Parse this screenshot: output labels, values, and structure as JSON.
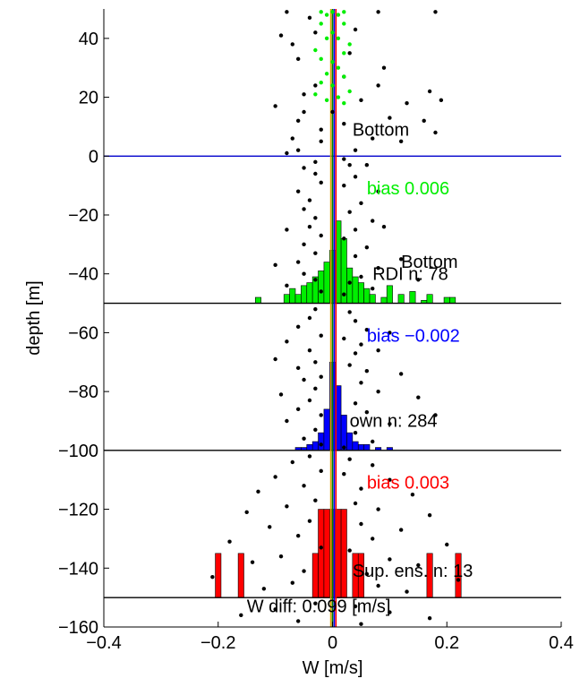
{
  "chart_data": {
    "type": "scatter",
    "title": "",
    "xlabel": "W [m/s]",
    "ylabel": "depth [m]",
    "xlim": [
      -0.4,
      0.4
    ],
    "ylim": [
      -160,
      50
    ],
    "x_ticks": [
      -0.4,
      -0.2,
      0,
      0.2,
      0.4
    ],
    "x_tick_labels": [
      "−0.4",
      "−0.2",
      "0",
      "0.2",
      "0.4"
    ],
    "y_ticks": [
      40,
      20,
      0,
      -20,
      -40,
      -60,
      -80,
      -100,
      -120,
      -140,
      -160
    ],
    "y_tick_labels": [
      "40",
      "20",
      "0",
      "−20",
      "−40",
      "−60",
      "−80",
      "−100",
      "−120",
      "−140",
      "−160"
    ],
    "grid": false,
    "reference_lines": [
      {
        "type": "horizontal",
        "y": 0,
        "color": "#0000cc"
      },
      {
        "type": "horizontal",
        "y": -50,
        "color": "#000000"
      },
      {
        "type": "horizontal",
        "y": -100,
        "color": "#000000"
      },
      {
        "type": "horizontal",
        "y": -150,
        "color": "#000000"
      }
    ],
    "vertical_profiles": [
      {
        "x": -0.003,
        "color": "#e8a000"
      },
      {
        "x": 0.0,
        "color": "#008000"
      },
      {
        "x": 0.003,
        "color": "#0000ff"
      },
      {
        "x": 0.006,
        "color": "#ff0000"
      }
    ],
    "histograms": [
      {
        "color": "#00ee00",
        "baseline": -50,
        "bins": [
          [
            -0.13,
            2
          ],
          [
            -0.08,
            3
          ],
          [
            -0.07,
            5
          ],
          [
            -0.06,
            3
          ],
          [
            -0.05,
            6
          ],
          [
            -0.04,
            7
          ],
          [
            -0.03,
            9
          ],
          [
            -0.02,
            11
          ],
          [
            -0.01,
            14
          ],
          [
            0.0,
            18
          ],
          [
            0.01,
            28
          ],
          [
            0.02,
            22
          ],
          [
            0.03,
            12
          ],
          [
            0.04,
            9
          ],
          [
            0.05,
            7
          ],
          [
            0.06,
            5
          ],
          [
            0.07,
            3
          ],
          [
            0.09,
            2
          ],
          [
            0.1,
            6
          ],
          [
            0.12,
            3
          ],
          [
            0.14,
            4
          ],
          [
            0.16,
            1
          ],
          [
            0.17,
            3
          ],
          [
            0.2,
            2
          ],
          [
            0.21,
            2
          ]
        ]
      },
      {
        "color": "#0000ff",
        "baseline": -100,
        "bins": [
          [
            -0.02,
            6
          ],
          [
            -0.01,
            14
          ],
          [
            0.0,
            30
          ],
          [
            0.01,
            22
          ],
          [
            0.02,
            12
          ],
          [
            0.03,
            6
          ],
          [
            0.04,
            3
          ],
          [
            0.05,
            2
          ],
          [
            0.06,
            2
          ],
          [
            -0.03,
            3
          ],
          [
            -0.04,
            2
          ],
          [
            -0.05,
            1
          ],
          [
            -0.06,
            1
          ],
          [
            0.08,
            1
          ],
          [
            0.1,
            1
          ]
        ]
      },
      {
        "color": "#ff0000",
        "baseline": -150,
        "bins": [
          [
            -0.2,
            15
          ],
          [
            -0.16,
            15
          ],
          [
            -0.03,
            15
          ],
          [
            -0.02,
            30
          ],
          [
            -0.01,
            30
          ],
          [
            0.0,
            30
          ],
          [
            0.01,
            30
          ],
          [
            0.02,
            30
          ],
          [
            0.04,
            15
          ],
          [
            0.05,
            15
          ],
          [
            0.17,
            15
          ],
          [
            0.22,
            15
          ]
        ]
      }
    ],
    "series": [
      {
        "color": "#000000",
        "points": [
          [
            -0.08,
            49
          ],
          [
            -0.04,
            47
          ],
          [
            0.08,
            49
          ],
          [
            0.18,
            49
          ],
          [
            -0.03,
            42
          ],
          [
            -0.09,
            41
          ],
          [
            0.04,
            43
          ],
          [
            -0.07,
            38
          ],
          [
            -0.06,
            33
          ],
          [
            0.03,
            35
          ],
          [
            0.09,
            30
          ],
          [
            0.02,
            27
          ],
          [
            -0.03,
            24
          ],
          [
            0.08,
            24
          ],
          [
            -0.05,
            21
          ],
          [
            0.17,
            22
          ],
          [
            0.05,
            19
          ],
          [
            -0.1,
            17
          ],
          [
            0.13,
            18
          ],
          [
            0.19,
            19
          ],
          [
            -0.05,
            15
          ],
          [
            0.0,
            15
          ],
          [
            0.1,
            13
          ],
          [
            -0.06,
            12
          ],
          [
            0.02,
            11
          ],
          [
            0.16,
            12
          ],
          [
            -0.02,
            9
          ],
          [
            -0.07,
            6
          ],
          [
            0.07,
            6
          ],
          [
            0.18,
            8
          ],
          [
            -0.02,
            5
          ],
          [
            0.12,
            5
          ],
          [
            -0.06,
            2
          ],
          [
            0.04,
            2
          ],
          [
            -0.08,
            1
          ],
          [
            0.02,
            -1
          ],
          [
            -0.03,
            -2
          ],
          [
            0.03,
            -3
          ],
          [
            -0.05,
            -4
          ],
          [
            0.06,
            -3
          ],
          [
            -0.03,
            -6
          ],
          [
            0.04,
            -7
          ],
          [
            -0.02,
            -9
          ],
          [
            0.02,
            -10
          ],
          [
            -0.06,
            -12
          ],
          [
            0.08,
            -12
          ],
          [
            -0.04,
            -15
          ],
          [
            0.05,
            -16
          ],
          [
            -0.05,
            -18
          ],
          [
            0.03,
            -19
          ],
          [
            -0.03,
            -21
          ],
          [
            0.07,
            -22
          ],
          [
            -0.04,
            -24
          ],
          [
            0.04,
            -25
          ],
          [
            0.09,
            -24
          ],
          [
            -0.08,
            -25
          ],
          [
            -0.02,
            -27
          ],
          [
            0.02,
            -28
          ],
          [
            -0.05,
            -30
          ],
          [
            0.06,
            -31
          ],
          [
            -0.03,
            -33
          ],
          [
            0.04,
            -34
          ],
          [
            -0.06,
            -36
          ],
          [
            0.12,
            -35
          ],
          [
            -0.1,
            -37
          ],
          [
            0.08,
            -38
          ],
          [
            -0.05,
            -40
          ],
          [
            0.05,
            -41
          ],
          [
            -0.03,
            -42
          ],
          [
            0.03,
            -43
          ],
          [
            0.15,
            -42
          ],
          [
            -0.08,
            -44
          ],
          [
            0.07,
            -45
          ],
          [
            -0.02,
            -46
          ],
          [
            0.02,
            -47
          ],
          [
            -0.03,
            -52
          ],
          [
            0.03,
            -53
          ],
          [
            -0.04,
            -55
          ],
          [
            0.04,
            -56
          ],
          [
            -0.06,
            -58
          ],
          [
            0.06,
            -59
          ],
          [
            -0.02,
            -61
          ],
          [
            0.02,
            -62
          ],
          [
            0.1,
            -60
          ],
          [
            -0.08,
            -63
          ],
          [
            0.05,
            -64
          ],
          [
            -0.04,
            -66
          ],
          [
            0.04,
            -67
          ],
          [
            0.08,
            -66
          ],
          [
            -0.1,
            -69
          ],
          [
            -0.03,
            -70
          ],
          [
            0.03,
            -71
          ],
          [
            -0.06,
            -72
          ],
          [
            0.06,
            -73
          ],
          [
            -0.02,
            -75
          ],
          [
            0.12,
            -74
          ],
          [
            -0.05,
            -76
          ],
          [
            0.05,
            -77
          ],
          [
            -0.03,
            -79
          ],
          [
            0.08,
            -80
          ],
          [
            -0.09,
            -81
          ],
          [
            0.15,
            -82
          ],
          [
            -0.04,
            -83
          ],
          [
            0.04,
            -84
          ],
          [
            -0.06,
            -86
          ],
          [
            0.06,
            -87
          ],
          [
            -0.02,
            -88
          ],
          [
            0.18,
            -88
          ],
          [
            -0.08,
            -90
          ],
          [
            0.1,
            -91
          ],
          [
            -0.03,
            -93
          ],
          [
            0.04,
            -94
          ],
          [
            -0.05,
            -96
          ],
          [
            0.07,
            -97
          ],
          [
            -0.02,
            -98
          ],
          [
            0.02,
            -99
          ],
          [
            -0.04,
            -102
          ],
          [
            0.03,
            -103
          ],
          [
            -0.07,
            -104
          ],
          [
            0.07,
            -105
          ],
          [
            -0.02,
            -107
          ],
          [
            0.02,
            -108
          ],
          [
            -0.1,
            -109
          ],
          [
            0.1,
            -110
          ],
          [
            -0.05,
            -112
          ],
          [
            0.05,
            -113
          ],
          [
            -0.13,
            -114
          ],
          [
            0.14,
            -115
          ],
          [
            -0.03,
            -117
          ],
          [
            0.04,
            -118
          ],
          [
            -0.08,
            -119
          ],
          [
            0.08,
            -120
          ],
          [
            -0.15,
            -121
          ],
          [
            0.17,
            -122
          ],
          [
            -0.04,
            -124
          ],
          [
            0.05,
            -125
          ],
          [
            -0.11,
            -126
          ],
          [
            0.12,
            -127
          ],
          [
            -0.06,
            -129
          ],
          [
            0.07,
            -130
          ],
          [
            -0.18,
            -131
          ],
          [
            0.2,
            -132
          ],
          [
            -0.02,
            -133
          ],
          [
            0.03,
            -134
          ],
          [
            -0.09,
            -136
          ],
          [
            0.1,
            -137
          ],
          [
            -0.14,
            -138
          ],
          [
            0.15,
            -139
          ],
          [
            -0.05,
            -141
          ],
          [
            0.06,
            -142
          ],
          [
            -0.21,
            -143
          ],
          [
            0.22,
            -144
          ],
          [
            -0.07,
            -145
          ],
          [
            0.08,
            -146
          ],
          [
            -0.12,
            -147
          ],
          [
            0.13,
            -148
          ],
          [
            -0.03,
            -152
          ],
          [
            0.04,
            -153
          ],
          [
            -0.1,
            -154
          ],
          [
            0.1,
            -155
          ],
          [
            -0.16,
            -156
          ],
          [
            0.17,
            -157
          ],
          [
            -0.06,
            -158
          ],
          [
            0.05,
            -159
          ]
        ]
      },
      {
        "color": "#00ee00",
        "points": [
          [
            -0.02,
            49
          ],
          [
            0.0,
            49
          ],
          [
            0.02,
            49
          ],
          [
            -0.01,
            48
          ],
          [
            0.01,
            48
          ],
          [
            -0.02,
            45
          ],
          [
            0.02,
            45
          ],
          [
            0.0,
            42
          ],
          [
            -0.01,
            40
          ],
          [
            0.01,
            40
          ],
          [
            0.03,
            38
          ],
          [
            -0.03,
            36
          ],
          [
            0.02,
            35
          ],
          [
            -0.02,
            33
          ],
          [
            0.0,
            32
          ],
          [
            0.01,
            30
          ],
          [
            -0.01,
            28
          ],
          [
            0.02,
            27
          ],
          [
            -0.02,
            25
          ],
          [
            0.0,
            24
          ],
          [
            0.03,
            22
          ],
          [
            -0.03,
            21
          ],
          [
            0.01,
            20
          ],
          [
            -0.01,
            19
          ],
          [
            0.02,
            18
          ]
        ]
      }
    ],
    "annotations": [
      {
        "text": "Bottom",
        "x": 0.035,
        "y": 7,
        "color": "#000000"
      },
      {
        "text": "bias  0.006",
        "x": 0.06,
        "y": -13,
        "color": "#00ee00"
      },
      {
        "text": "Bottom",
        "x": 0.12,
        "y": -38,
        "color": "#000000"
      },
      {
        "text": "RDI n: 78",
        "x": 0.07,
        "y": -42,
        "color": "#000000"
      },
      {
        "text": "bias −0.002",
        "x": 0.06,
        "y": -63,
        "color": "#0000ff"
      },
      {
        "text": "own n: 284",
        "x": 0.03,
        "y": -92,
        "color": "#000000"
      },
      {
        "text": "bias  0.003",
        "x": 0.06,
        "y": -113,
        "color": "#ff0000"
      },
      {
        "text": "Sup. ens. n: 13",
        "x": 0.035,
        "y": -143,
        "color": "#000000"
      },
      {
        "text": "W diff:  0.099 [m/s]",
        "x": -0.15,
        "y": -155,
        "color": "#000000"
      }
    ]
  }
}
